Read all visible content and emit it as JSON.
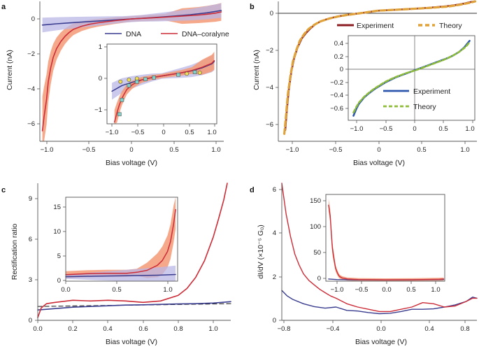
{
  "colors": {
    "dna": "#3a3d8f",
    "dna_band": "#b9b7e6",
    "cor": "#cc2c37",
    "cor_band": "#f59a76",
    "exp": "#8b1c22",
    "theory": "#e0a23a",
    "exp_in": "#2d56ad",
    "theory_in": "#8fbd3a",
    "axis": "#555555",
    "marker_yellow": "#f0e050",
    "marker_teal": "#7fd0c8"
  },
  "chart_data": [
    {
      "panel": "a",
      "type": "line",
      "xlabel": "Bias voltage (V)",
      "ylabel": "Current (nA)",
      "xlim": [
        -1.1,
        1.1
      ],
      "ylim": [
        -7,
        1
      ],
      "xticks": [
        "−1.0",
        "−0.5",
        "0",
        "0.5",
        "1.0"
      ],
      "yticks": [
        "0",
        "−2",
        "−4",
        "−6"
      ],
      "legend": [
        "DNA",
        "DNA–coralyne"
      ],
      "series": [
        {
          "name": "DNA",
          "x": [
            -1.07,
            -0.9,
            -0.7,
            -0.5,
            -0.3,
            -0.1,
            0.1,
            0.3,
            0.5,
            0.7,
            0.9,
            1.07
          ],
          "y": [
            -0.35,
            -0.28,
            -0.21,
            -0.15,
            -0.09,
            -0.03,
            0.03,
            0.09,
            0.16,
            0.24,
            0.35,
            0.48
          ]
        },
        {
          "name": "DNA–coralyne",
          "x": [
            -1.07,
            -1.05,
            -1.02,
            -1.0,
            -0.97,
            -0.94,
            -0.9,
            -0.85,
            -0.8,
            -0.75,
            -0.7,
            -0.6,
            -0.5,
            -0.4,
            -0.3,
            -0.2,
            -0.1,
            0.0,
            0.2,
            0.4,
            0.6,
            0.8,
            0.9,
            1.0,
            1.07
          ],
          "y": [
            -6.4,
            -5.6,
            -4.6,
            -3.6,
            -2.8,
            -2.2,
            -1.7,
            -1.3,
            -1.0,
            -0.78,
            -0.6,
            -0.42,
            -0.3,
            -0.22,
            -0.16,
            -0.1,
            -0.05,
            0.0,
            0.05,
            0.1,
            0.16,
            0.22,
            0.27,
            0.33,
            0.4
          ]
        }
      ]
    },
    {
      "panel": "a-inset",
      "type": "line",
      "xlim": [
        -1.1,
        1.1
      ],
      "ylim": [
        -1.5,
        1
      ],
      "xticks": [
        "−1.0",
        "−0.5",
        "0",
        "0.5",
        "1.0"
      ],
      "yticks": [
        "1",
        "0",
        "−1"
      ],
      "series": [
        {
          "name": "DNA",
          "x": [
            -1.0,
            -0.8,
            -0.6,
            -0.4,
            -0.2,
            0.0,
            0.2,
            0.4,
            0.6,
            0.8,
            1.0,
            1.05
          ],
          "y": [
            -0.48,
            -0.3,
            -0.2,
            -0.12,
            -0.05,
            0.0,
            0.05,
            0.1,
            0.16,
            0.25,
            0.38,
            0.45
          ]
        },
        {
          "name": "DNA–coralyne",
          "x": [
            -0.95,
            -0.9,
            -0.85,
            -0.8,
            -0.75,
            -0.7,
            -0.6,
            -0.5,
            -0.4,
            -0.2,
            0.0,
            0.2,
            0.4,
            0.6,
            0.8,
            1.0,
            1.05
          ],
          "y": [
            -1.45,
            -1.15,
            -0.9,
            -0.7,
            -0.55,
            -0.42,
            -0.28,
            -0.19,
            -0.12,
            -0.05,
            0.0,
            0.05,
            0.1,
            0.17,
            0.27,
            0.4,
            0.48
          ]
        },
        {
          "name": "markers-yellow",
          "x": [
            -0.83,
            -0.66,
            -0.5,
            0.5,
            0.76
          ],
          "y": [
            -0.18,
            -0.12,
            -0.08,
            0.07,
            0.1
          ]
        },
        {
          "name": "markers-teal",
          "x": [
            -0.85,
            -0.8,
            -0.66,
            -0.5,
            -0.33,
            -0.16,
            0.33,
            0.66
          ],
          "y": [
            -1.2,
            -0.75,
            -0.3,
            -0.18,
            -0.1,
            -0.05,
            0.04,
            0.12
          ]
        }
      ]
    },
    {
      "panel": "b",
      "type": "line",
      "xlabel": "Bias voltage (V)",
      "ylabel": "Current (nA)",
      "xlim": [
        -1.15,
        1.15
      ],
      "ylim": [
        -7,
        0.5
      ],
      "xticks": [
        "−1.0",
        "−0.5",
        "0",
        "0.5",
        "1.0"
      ],
      "yticks": [
        "0",
        "−2",
        "−4",
        "−6"
      ],
      "legend": [
        "Experiment",
        "Theory"
      ],
      "series": [
        {
          "name": "Experiment",
          "x": [
            -1.07,
            -1.05,
            -1.03,
            -1.0,
            -0.97,
            -0.93,
            -0.88,
            -0.83,
            -0.78,
            -0.72,
            -0.65,
            -0.55,
            -0.45,
            -0.35,
            -0.25,
            -0.15,
            0.0,
            0.2,
            0.4,
            0.6,
            0.8,
            0.9,
            1.0,
            1.07,
            1.12
          ],
          "y": [
            -6.4,
            -5.3,
            -4.3,
            -3.3,
            -2.6,
            -2.0,
            -1.5,
            -1.2,
            -0.95,
            -0.72,
            -0.55,
            -0.4,
            -0.3,
            -0.22,
            -0.16,
            -0.1,
            0.0,
            0.05,
            0.1,
            0.16,
            0.24,
            0.3,
            0.38,
            0.46,
            0.55
          ]
        },
        {
          "name": "Theory",
          "x": [
            -1.08,
            -1.06,
            -1.04,
            -1.01,
            -0.98,
            -0.94,
            -0.9,
            -0.85,
            -0.8,
            -0.73,
            -0.66,
            -0.56,
            -0.46,
            -0.36,
            -0.26,
            -0.15,
            0.0,
            0.2,
            0.4,
            0.6,
            0.8,
            0.9,
            1.0,
            1.08,
            1.13
          ],
          "y": [
            -6.6,
            -5.6,
            -4.5,
            -3.5,
            -2.7,
            -2.1,
            -1.6,
            -1.25,
            -0.98,
            -0.74,
            -0.57,
            -0.42,
            -0.31,
            -0.23,
            -0.17,
            -0.1,
            0.0,
            0.05,
            0.1,
            0.15,
            0.22,
            0.28,
            0.36,
            0.44,
            0.5
          ]
        }
      ]
    },
    {
      "panel": "b-inset",
      "type": "line",
      "xlim": [
        -1.2,
        1.2
      ],
      "ylim": [
        -0.75,
        0.55
      ],
      "xticks": [
        "−1.0",
        "−0.5",
        "0",
        "0.5",
        "1.0"
      ],
      "yticks": [
        "0.4",
        "0.2",
        "0",
        "−0.2",
        "−0.4",
        "−0.6"
      ],
      "legend": [
        "Experiment",
        "Theory"
      ],
      "series": [
        {
          "name": "Experiment",
          "x": [
            -1.1,
            -1.05,
            -1.0,
            -0.9,
            -0.8,
            -0.7,
            -0.6,
            -0.5,
            -0.4,
            -0.3,
            -0.2,
            -0.1,
            0.0,
            0.1,
            0.2,
            0.3,
            0.4,
            0.5,
            0.6,
            0.7,
            0.8,
            0.9,
            1.0,
            1.05,
            1.1
          ],
          "y": [
            -0.68,
            -0.58,
            -0.5,
            -0.4,
            -0.33,
            -0.27,
            -0.22,
            -0.17,
            -0.13,
            -0.09,
            -0.06,
            -0.03,
            0.0,
            0.03,
            0.06,
            0.09,
            0.12,
            0.15,
            0.18,
            0.21,
            0.25,
            0.3,
            0.37,
            0.42,
            0.47
          ]
        },
        {
          "name": "Theory",
          "x": [
            -1.1,
            -1.05,
            -1.0,
            -0.9,
            -0.8,
            -0.7,
            -0.6,
            -0.5,
            -0.4,
            -0.3,
            -0.2,
            -0.1,
            0.0,
            0.1,
            0.2,
            0.3,
            0.4,
            0.5,
            0.6,
            0.7,
            0.8,
            0.9,
            1.0,
            1.05,
            1.1
          ],
          "y": [
            -0.63,
            -0.55,
            -0.48,
            -0.39,
            -0.32,
            -0.26,
            -0.21,
            -0.16,
            -0.12,
            -0.085,
            -0.055,
            -0.025,
            0.0,
            0.025,
            0.055,
            0.085,
            0.115,
            0.145,
            0.175,
            0.21,
            0.25,
            0.3,
            0.36,
            0.4,
            0.45
          ]
        }
      ]
    },
    {
      "panel": "c",
      "type": "line",
      "xlabel": "Bias voltage (V)",
      "ylabel": "Rectification ratio",
      "xlim": [
        0,
        1.1
      ],
      "ylim": [
        0,
        9.9
      ],
      "xticks": [
        "0.0",
        "0.2",
        "0.4",
        "0.6",
        "0.8",
        "1.0"
      ],
      "yticks": [
        "0",
        "3",
        "6",
        "9"
      ],
      "series": [
        {
          "name": "DNA–coralyne",
          "x": [
            0.0,
            0.02,
            0.05,
            0.1,
            0.2,
            0.3,
            0.4,
            0.5,
            0.6,
            0.7,
            0.8,
            0.85,
            0.9,
            0.95,
            1.0,
            1.03,
            1.06,
            1.08
          ],
          "y": [
            0.2,
            0.9,
            1.2,
            1.3,
            1.45,
            1.4,
            1.45,
            1.4,
            1.3,
            1.4,
            1.8,
            2.3,
            3.1,
            4.3,
            6.0,
            7.3,
            8.7,
            9.9
          ]
        },
        {
          "name": "DNA",
          "x": [
            0.0,
            0.1,
            0.2,
            0.3,
            0.4,
            0.5,
            0.6,
            0.7,
            0.8,
            0.9,
            1.0,
            1.1
          ],
          "y": [
            0.75,
            0.85,
            0.95,
            1.0,
            1.05,
            1.1,
            1.12,
            1.15,
            1.18,
            1.2,
            1.25,
            1.35
          ]
        },
        {
          "name": "reference",
          "x": [
            0.0,
            1.1
          ],
          "y": [
            1.0,
            1.2
          ]
        }
      ]
    },
    {
      "panel": "c-inset",
      "type": "line",
      "xlim": [
        0,
        1.1
      ],
      "ylim": [
        0,
        17
      ],
      "xticks": [
        "0.0",
        "0.5",
        "1.0"
      ],
      "yticks": [
        "15",
        "10",
        "5",
        "0"
      ],
      "series": [
        {
          "name": "DNA–coralyne",
          "x": [
            0.0,
            0.2,
            0.4,
            0.6,
            0.7,
            0.8,
            0.9,
            0.95,
            1.0,
            1.03,
            1.06,
            1.08
          ],
          "y": [
            1.3,
            1.5,
            1.6,
            1.6,
            1.8,
            2.2,
            3.2,
            4.2,
            6.0,
            8.0,
            11.5,
            14.5
          ]
        },
        {
          "name": "DNA",
          "x": [
            0.0,
            0.3,
            0.6,
            0.9,
            1.08
          ],
          "y": [
            0.9,
            1.0,
            1.1,
            1.2,
            1.35
          ]
        }
      ]
    },
    {
      "panel": "d",
      "type": "line",
      "xlabel": "Bias voltage (V)",
      "ylabel": "dI/dV (×10⁻⁵ G₀)",
      "xlim": [
        -0.9,
        0.9
      ],
      "ylim": [
        0,
        6.2
      ],
      "xticks": [
        "−0.8",
        "−0.4",
        "0.0",
        "0.4",
        "0.8"
      ],
      "yticks": [
        "0",
        "2",
        "4",
        "6"
      ],
      "series": [
        {
          "name": "DNA–coralyne",
          "x": [
            -0.9,
            -0.86,
            -0.82,
            -0.78,
            -0.74,
            -0.7,
            -0.65,
            -0.6,
            -0.55,
            -0.5,
            -0.45,
            -0.4,
            -0.3,
            -0.2,
            -0.1,
            0.0,
            0.1,
            0.2,
            0.3,
            0.4,
            0.5,
            0.6,
            0.7,
            0.8,
            0.86,
            0.9
          ],
          "y": [
            6.2,
            4.8,
            3.8,
            3.0,
            2.5,
            2.1,
            1.8,
            1.6,
            1.4,
            1.25,
            1.1,
            1.0,
            0.75,
            0.6,
            0.5,
            0.4,
            0.4,
            0.5,
            0.6,
            0.8,
            0.75,
            0.6,
            0.65,
            0.85,
            1.0,
            1.0
          ]
        },
        {
          "name": "DNA",
          "x": [
            -0.9,
            -0.85,
            -0.8,
            -0.7,
            -0.6,
            -0.5,
            -0.4,
            -0.3,
            -0.2,
            -0.1,
            0.0,
            0.1,
            0.2,
            0.3,
            0.4,
            0.5,
            0.6,
            0.7,
            0.8,
            0.86,
            0.9
          ],
          "y": [
            1.35,
            1.1,
            0.95,
            0.75,
            0.62,
            0.55,
            0.6,
            0.45,
            0.42,
            0.35,
            0.3,
            0.32,
            0.4,
            0.5,
            0.5,
            0.52,
            0.6,
            0.7,
            0.85,
            1.05,
            1.0
          ]
        }
      ]
    },
    {
      "panel": "d-inset",
      "type": "line",
      "xlim": [
        -1.1,
        1.1
      ],
      "ylim": [
        -2,
        160
      ],
      "xticks": [
        "−1.0",
        "−0.5",
        "0.0",
        "0.5",
        "1.0"
      ],
      "yticks": [
        "150",
        "100",
        "50",
        "0"
      ],
      "series": [
        {
          "name": "DNA–coralyne",
          "x": [
            -1.05,
            -1.02,
            -1.0,
            -0.98,
            -0.95,
            -0.92,
            -0.88,
            -0.85,
            -0.8,
            -0.7,
            -0.5,
            0.0,
            0.5,
            1.0,
            1.08
          ],
          "y": [
            140,
            120,
            90,
            60,
            40,
            22,
            12,
            7,
            4,
            2,
            1,
            0.5,
            0.8,
            1.5,
            2
          ]
        },
        {
          "name": "DNA",
          "x": [
            -1.05,
            -0.9,
            -0.5,
            0.0,
            0.5,
            1.0,
            1.08
          ],
          "y": [
            2,
            1,
            0.5,
            0.3,
            0.5,
            1,
            1.2
          ]
        }
      ]
    }
  ],
  "panels": [
    {
      "letter": "a",
      "xlabel": "Bias voltage (V)",
      "ylabel": "Current (nA)",
      "xticks": [
        "−1.0",
        "−0.5",
        "0",
        "0.5",
        "1.0"
      ],
      "yticks": [
        "0",
        "−2",
        "−4",
        "−6"
      ],
      "legend": [
        "DNA",
        "DNA–coralyne"
      ],
      "inset": {
        "xticks": [
          "−1.0",
          "−0.5",
          "0",
          "0.5",
          "1.0"
        ],
        "yticks": [
          "1",
          "0",
          "−1"
        ]
      }
    },
    {
      "letter": "b",
      "xlabel": "Bias voltage (V)",
      "ylabel": "Current (nA)",
      "xticks": [
        "−1.0",
        "−0.5",
        "0",
        "0.5",
        "1.0"
      ],
      "yticks": [
        "0",
        "−2",
        "−4",
        "−6"
      ],
      "legend": [
        "Experiment",
        "Theory"
      ],
      "inset": {
        "xticks": [
          "−1.0",
          "−0.5",
          "0",
          "0.5",
          "1.0"
        ],
        "yticks": [
          "0.4",
          "0.2",
          "0",
          "−0.2",
          "−0.4",
          "−0.6"
        ],
        "legend": [
          "Experiment",
          "Theory"
        ]
      }
    },
    {
      "letter": "c",
      "xlabel": "Bias voltage (V)",
      "ylabel": "Rectification ratio",
      "xticks": [
        "0.0",
        "0.2",
        "0.4",
        "0.6",
        "0.8",
        "1.0"
      ],
      "yticks": [
        "0",
        "3",
        "6",
        "9"
      ],
      "inset": {
        "xticks": [
          "0.0",
          "0.5",
          "1.0"
        ],
        "yticks": [
          "15",
          "10",
          "5",
          "0"
        ]
      }
    },
    {
      "letter": "d",
      "xlabel": "Bias voltage (V)",
      "ylabel": "dI/dV (×10⁻⁵ G₀)",
      "xticks": [
        "−0.8",
        "−0.4",
        "0.0",
        "0.4",
        "0.8"
      ],
      "yticks": [
        "0",
        "2",
        "4",
        "6"
      ],
      "inset": {
        "xticks": [
          "−1.0",
          "−0.5",
          "0.0",
          "0.5",
          "1.0"
        ],
        "yticks": [
          "150",
          "100",
          "50",
          "0"
        ]
      }
    }
  ]
}
